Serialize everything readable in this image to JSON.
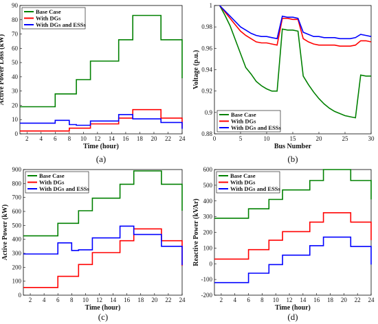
{
  "chart_data": [
    {
      "type": "line",
      "panel_label": "(a)",
      "xlabel": "Time (hour)",
      "ylabel": "Active Power Loss (kW)",
      "xlim": [
        1,
        24
      ],
      "ylim": [
        0,
        90
      ],
      "xticks": [
        2,
        4,
        6,
        8,
        10,
        12,
        14,
        16,
        18,
        20,
        22,
        24
      ],
      "yticks": [
        0,
        10,
        20,
        30,
        40,
        50,
        60,
        70,
        80,
        90
      ],
      "step": true,
      "legend": "top-left",
      "x": [
        1,
        6,
        8,
        9,
        11,
        15,
        17,
        21,
        23,
        24
      ],
      "series": [
        {
          "name": "Base Case",
          "color": "#008000",
          "values": [
            19,
            28,
            28,
            38,
            51,
            66,
            83,
            66,
            66,
            39
          ]
        },
        {
          "name": "With DGs",
          "color": "#ff0000",
          "values": [
            2,
            2,
            4,
            4,
            7,
            11,
            17,
            11,
            11,
            4
          ]
        },
        {
          "name": "With DGs and ESSs",
          "color": "#0000ff",
          "values": [
            7.5,
            9.5,
            6.5,
            6,
            9,
            13.5,
            10.5,
            8,
            8,
            3.5
          ]
        }
      ]
    },
    {
      "type": "line",
      "panel_label": "(b)",
      "xlabel": "Bus Number",
      "ylabel": "Voltage (p.u.)",
      "xlim": [
        0,
        30
      ],
      "ylim": [
        0.88,
        1
      ],
      "xticks": [
        0,
        5,
        10,
        15,
        20,
        25,
        30
      ],
      "yticks": [
        0.88,
        0.9,
        0.92,
        0.94,
        0.96,
        0.98,
        1
      ],
      "step": false,
      "legend": "bottom-left",
      "x": [
        1,
        2,
        3,
        4,
        5,
        6,
        7,
        8,
        9,
        10,
        11,
        12,
        13,
        14,
        15,
        16,
        17,
        18,
        19,
        20,
        21,
        22,
        23,
        24,
        25,
        26,
        27,
        28,
        29,
        30
      ],
      "series": [
        {
          "name": "Base Case",
          "color": "#008000",
          "values": [
            1.0,
            0.991,
            0.981,
            0.968,
            0.955,
            0.942,
            0.936,
            0.929,
            0.925,
            0.922,
            0.92,
            0.92,
            0.978,
            0.977,
            0.977,
            0.976,
            0.934,
            0.926,
            0.919,
            0.913,
            0.908,
            0.904,
            0.901,
            0.899,
            0.897,
            0.896,
            0.895,
            0.935,
            0.934,
            0.934
          ]
        },
        {
          "name": "With DGs",
          "color": "#ff0000",
          "values": [
            1.0,
            0.994,
            0.988,
            0.982,
            0.976,
            0.972,
            0.969,
            0.966,
            0.965,
            0.965,
            0.964,
            0.963,
            0.988,
            0.988,
            0.987,
            0.987,
            0.969,
            0.966,
            0.964,
            0.963,
            0.963,
            0.963,
            0.963,
            0.962,
            0.962,
            0.962,
            0.963,
            0.967,
            0.967,
            0.966
          ]
        },
        {
          "name": "With DGs and ESSs",
          "color": "#0000ff",
          "values": [
            1.0,
            0.995,
            0.99,
            0.985,
            0.98,
            0.977,
            0.974,
            0.972,
            0.971,
            0.971,
            0.97,
            0.969,
            0.99,
            0.989,
            0.989,
            0.988,
            0.975,
            0.973,
            0.971,
            0.971,
            0.97,
            0.97,
            0.97,
            0.969,
            0.969,
            0.969,
            0.97,
            0.973,
            0.972,
            0.971
          ]
        }
      ]
    },
    {
      "type": "line",
      "panel_label": "(c)",
      "xlabel": "Time (hour)",
      "ylabel": "Active Power (kW)",
      "xlim": [
        1,
        24
      ],
      "ylim": [
        0,
        900
      ],
      "xticks": [
        2,
        4,
        6,
        8,
        10,
        12,
        14,
        16,
        18,
        20,
        22,
        24
      ],
      "yticks": [
        0,
        100,
        200,
        300,
        400,
        500,
        600,
        700,
        800,
        900
      ],
      "step": true,
      "legend": "top-left",
      "x": [
        1,
        6,
        8,
        9,
        11,
        15,
        17,
        21,
        23,
        24
      ],
      "series": [
        {
          "name": "Base Case",
          "color": "#008000",
          "values": [
            425,
            515,
            515,
            605,
            695,
            795,
            890,
            795,
            795,
            605
          ]
        },
        {
          "name": "With DGs",
          "color": "#ff0000",
          "values": [
            55,
            135,
            135,
            220,
            305,
            390,
            475,
            390,
            390,
            210
          ]
        },
        {
          "name": "With DGs and ESSs",
          "color": "#0000ff",
          "values": [
            295,
            375,
            320,
            325,
            410,
            495,
            435,
            350,
            350,
            215
          ]
        }
      ]
    },
    {
      "type": "line",
      "panel_label": "(d)",
      "xlabel": "Time (hour)",
      "ylabel": "Reactive Power (kVAr)",
      "xlim": [
        1,
        24
      ],
      "ylim": [
        -200,
        600
      ],
      "xticks": [
        2,
        4,
        6,
        8,
        10,
        12,
        14,
        16,
        18,
        20,
        22,
        24
      ],
      "yticks": [
        -200,
        -100,
        0,
        100,
        200,
        300,
        400,
        500,
        600
      ],
      "step": true,
      "legend": "top-left",
      "x": [
        1,
        6,
        8,
        9,
        11,
        15,
        17,
        21,
        23,
        24
      ],
      "series": [
        {
          "name": "Base Case",
          "color": "#008000",
          "values": [
            290,
            350,
            350,
            410,
            470,
            530,
            600,
            530,
            530,
            410
          ]
        },
        {
          "name": "With DGs",
          "color": "#ff0000",
          "values": [
            30,
            90,
            90,
            150,
            205,
            265,
            325,
            265,
            265,
            150
          ]
        },
        {
          "name": "With DGs and ESSs",
          "color": "#0000ff",
          "values": [
            -120,
            -60,
            -60,
            -5,
            55,
            115,
            170,
            110,
            110,
            -5
          ]
        }
      ]
    }
  ]
}
